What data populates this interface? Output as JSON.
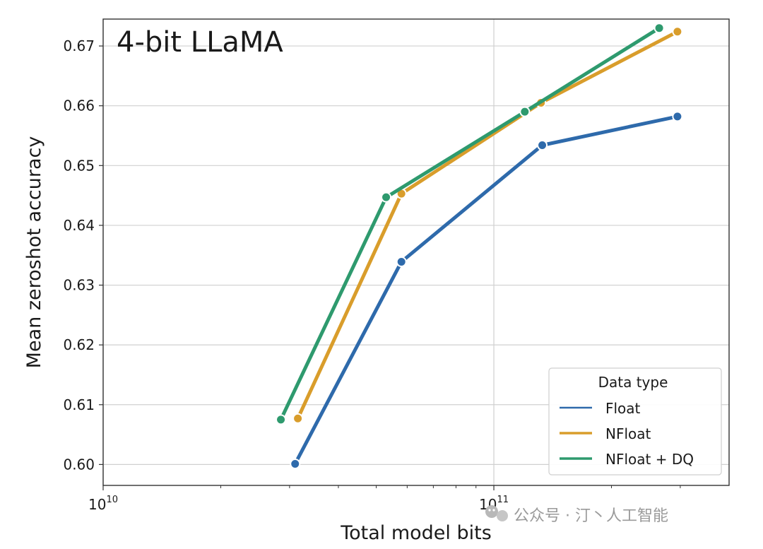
{
  "chart_data": {
    "type": "line",
    "title": "4-bit LLaMA",
    "xlabel": "Total model bits",
    "ylabel": "Mean zeroshot accuracy",
    "x_scale": "log",
    "xlim": [
      10000000000.0,
      400000000000.0
    ],
    "ylim": [
      0.5965,
      0.6745
    ],
    "x_ticks": [
      {
        "value": 10000000000.0,
        "label_base": "10",
        "label_exp": "10"
      },
      {
        "value": 100000000000.0,
        "label_base": "10",
        "label_exp": "11"
      }
    ],
    "y_ticks": [
      {
        "value": 0.6,
        "label": "0.60"
      },
      {
        "value": 0.61,
        "label": "0.61"
      },
      {
        "value": 0.62,
        "label": "0.62"
      },
      {
        "value": 0.63,
        "label": "0.63"
      },
      {
        "value": 0.64,
        "label": "0.64"
      },
      {
        "value": 0.65,
        "label": "0.65"
      },
      {
        "value": 0.66,
        "label": "0.66"
      },
      {
        "value": 0.67,
        "label": "0.67"
      }
    ],
    "grid": true,
    "legend": {
      "title": "Data type",
      "position": "lower-right"
    },
    "series": [
      {
        "name": "Float",
        "color": "#2e6aab",
        "points": [
          {
            "x": 31000000000.0,
            "y": 0.6001
          },
          {
            "x": 58000000000.0,
            "y": 0.6339
          },
          {
            "x": 133000000000.0,
            "y": 0.6534
          },
          {
            "x": 295000000000.0,
            "y": 0.6582
          }
        ]
      },
      {
        "name": "NFloat",
        "color": "#d99d2b",
        "points": [
          {
            "x": 31500000000.0,
            "y": 0.6077
          },
          {
            "x": 58000000000.0,
            "y": 0.6453
          },
          {
            "x": 132000000000.0,
            "y": 0.6605
          },
          {
            "x": 295000000000.0,
            "y": 0.6724
          }
        ]
      },
      {
        "name": "NFloat + DQ",
        "color": "#2e9a6e",
        "points": [
          {
            "x": 28500000000.0,
            "y": 0.6075
          },
          {
            "x": 53000000000.0,
            "y": 0.6447
          },
          {
            "x": 120000000000.0,
            "y": 0.659
          },
          {
            "x": 265000000000.0,
            "y": 0.673
          }
        ]
      }
    ]
  },
  "watermark": {
    "text": "公众号 · 汀丶人工智能",
    "icon": "wechat-icon",
    "color": "#9a9a9a"
  }
}
